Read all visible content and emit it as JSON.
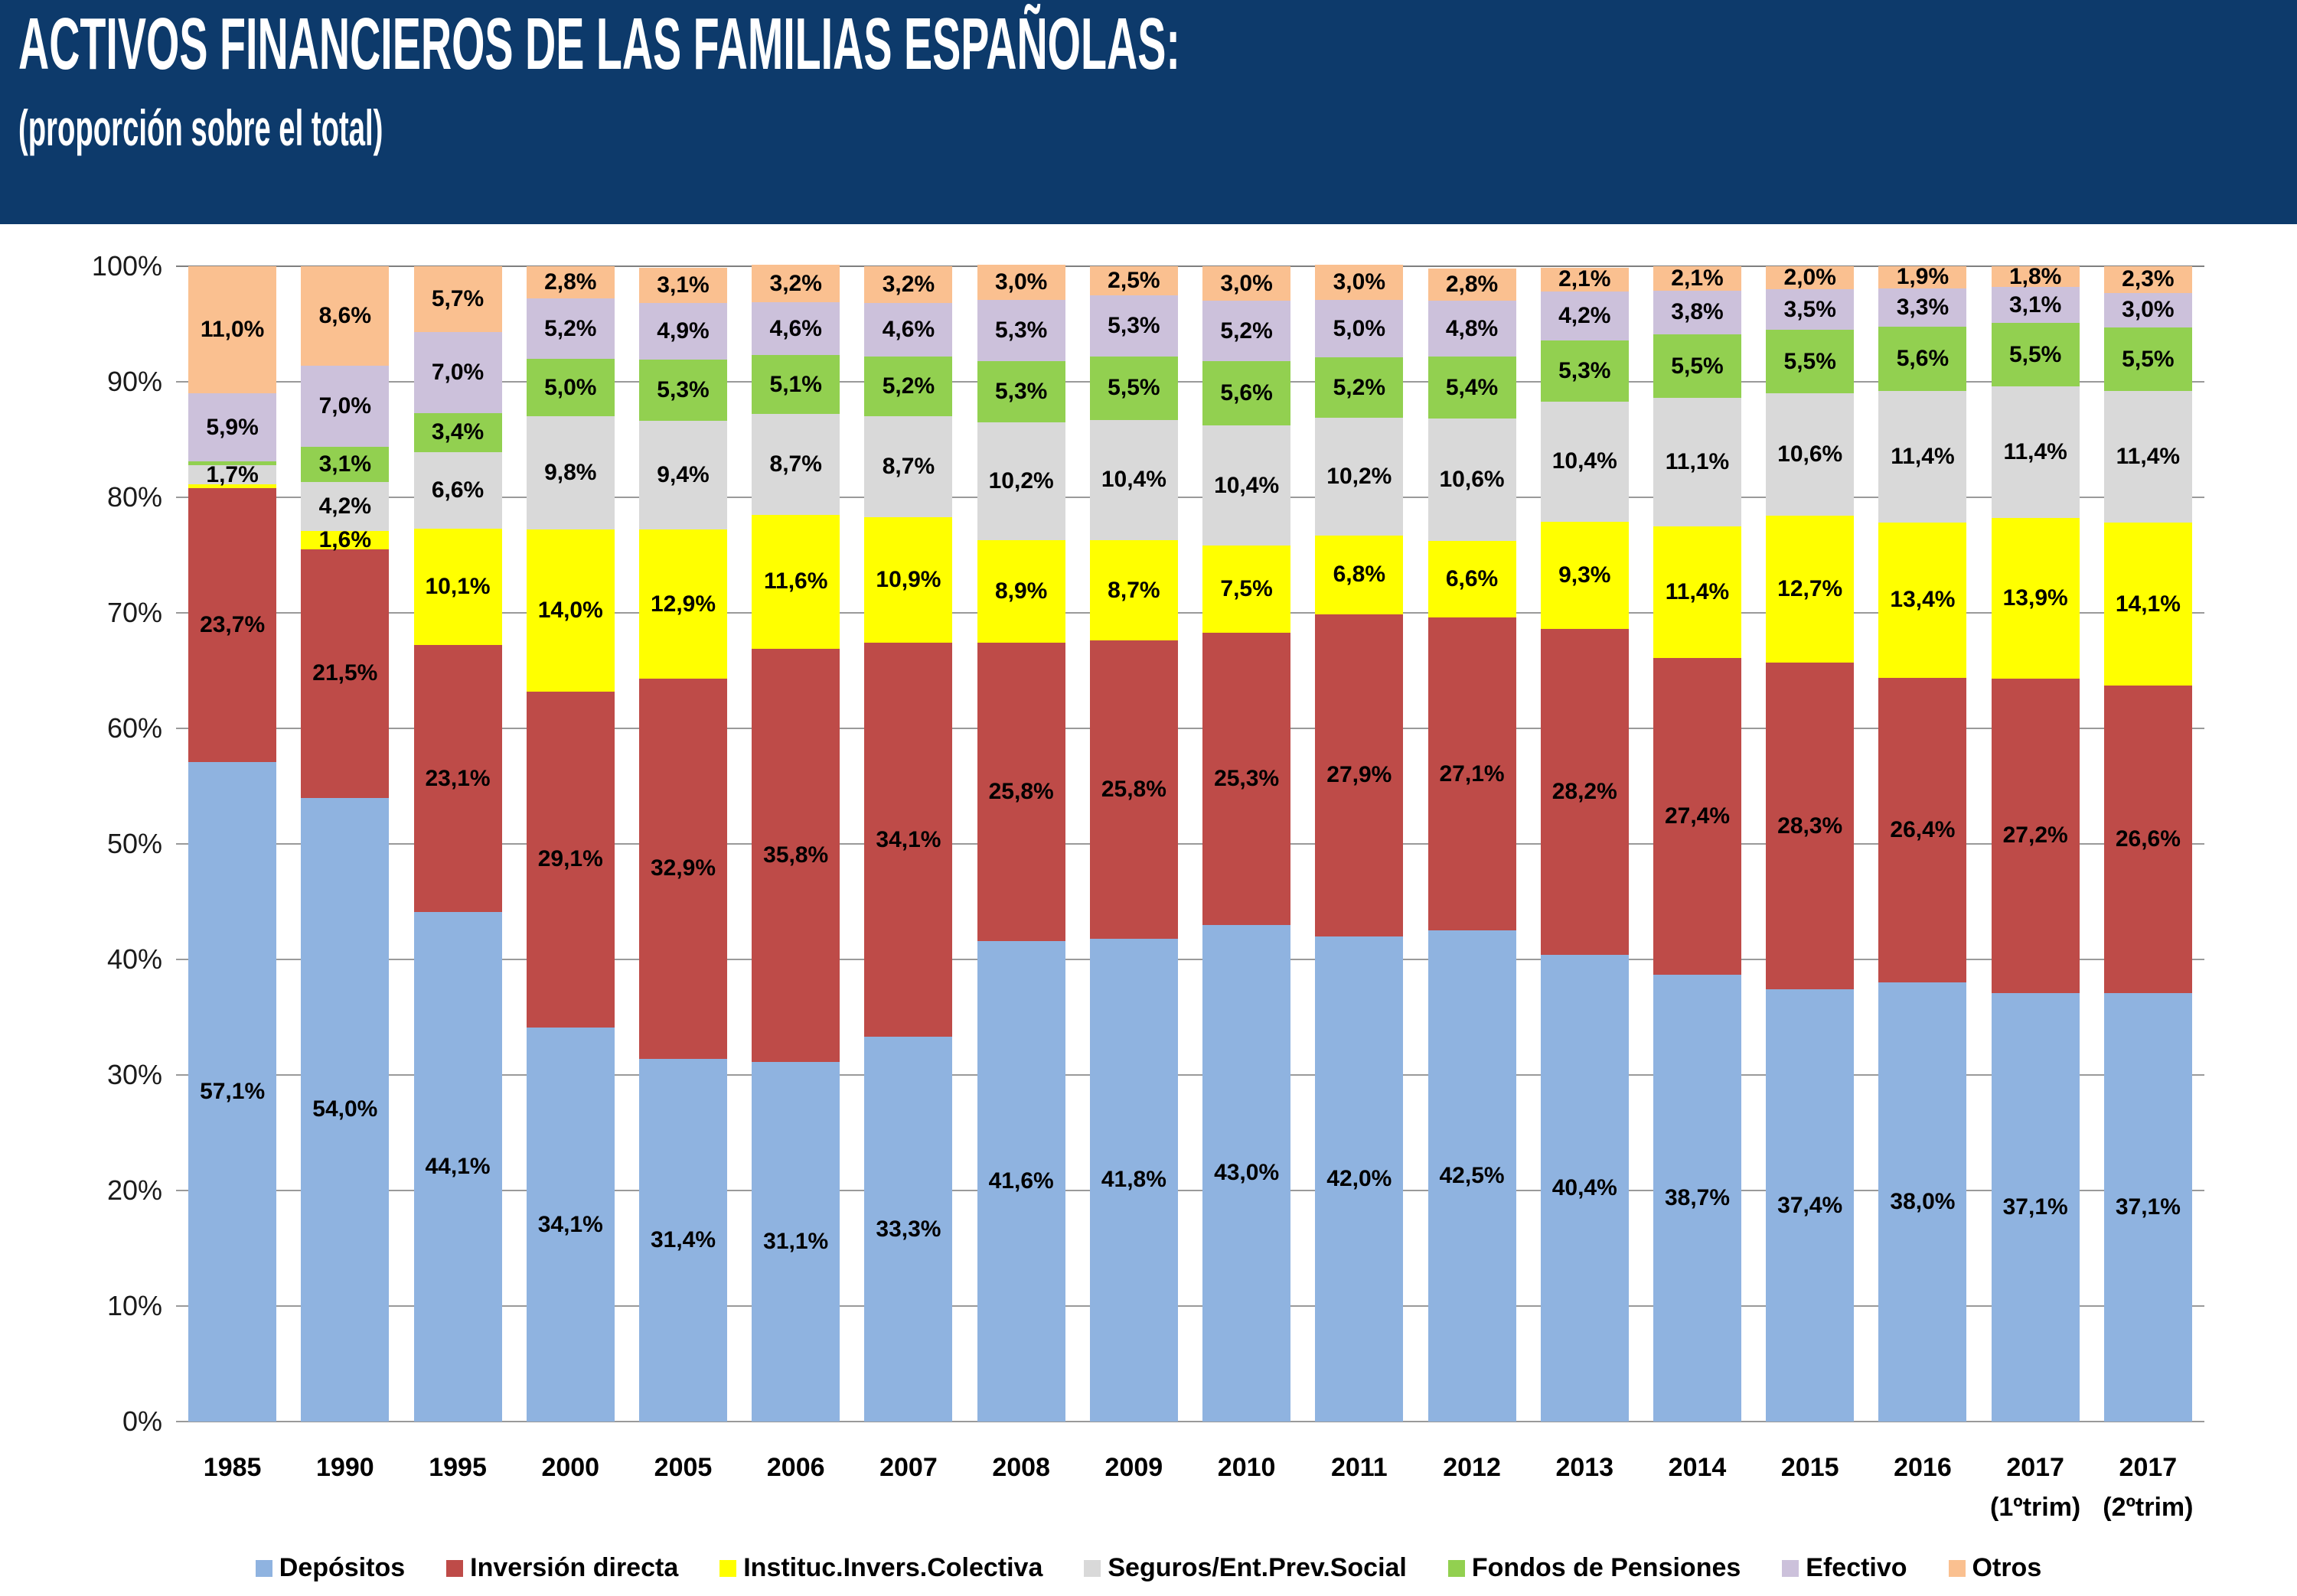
{
  "header": {
    "title": "ACTIVOS FINANCIEROS DE LAS FAMILIAS ESPAÑOLAS:",
    "subtitle": "(proporción sobre el total)"
  },
  "colors": {
    "header_bg": "#0d3a6b",
    "gridline": "#9a9a9a",
    "gridline_top": "#7f7f7f",
    "axis_label": "#1a1a1a",
    "data_label": "#000000"
  },
  "chart_data": {
    "type": "bar",
    "variant": "stacked-100-percent",
    "title": "ACTIVOS FINANCIEROS DE LAS FAMILIAS ESPAÑOLAS:",
    "subtitle": "(proporción sobre el total)",
    "xlabel": "",
    "ylabel": "",
    "ylim": [
      0,
      100
    ],
    "y_tick_labels": [
      "0%",
      "10%",
      "20%",
      "30%",
      "40%",
      "50%",
      "60%",
      "70%",
      "80%",
      "90%",
      "100%"
    ],
    "grid": true,
    "legend_position": "bottom",
    "categories": [
      "1985",
      "1990",
      "1995",
      "2000",
      "2005",
      "2006",
      "2007",
      "2008",
      "2009",
      "2010",
      "2011",
      "2012",
      "2013",
      "2014",
      "2015",
      "2016",
      "2017",
      "2017"
    ],
    "category_sublabels": {
      "16": "(1ºtrim)",
      "17": "(2ºtrim)"
    },
    "series": [
      {
        "name": "Depósitos",
        "color": "#8fb3e0",
        "values": [
          57.1,
          54.0,
          44.1,
          34.1,
          31.4,
          31.1,
          33.3,
          41.6,
          41.8,
          43.0,
          42.0,
          42.5,
          40.4,
          38.7,
          37.4,
          38.0,
          37.1,
          37.1
        ]
      },
      {
        "name": "Inversión directa",
        "color": "#be4b48",
        "values": [
          23.7,
          21.5,
          23.1,
          29.1,
          32.9,
          35.8,
          34.1,
          25.8,
          25.8,
          25.3,
          27.9,
          27.1,
          28.2,
          27.4,
          28.3,
          26.4,
          27.2,
          26.6
        ]
      },
      {
        "name": "Instituc.Invers.Colectiva",
        "color": "#ffff00",
        "values": [
          0.3,
          1.6,
          10.1,
          14.0,
          12.9,
          11.6,
          10.9,
          8.9,
          8.7,
          7.5,
          6.8,
          6.6,
          9.3,
          11.4,
          12.7,
          13.4,
          13.9,
          14.1
        ],
        "note": "1985 value unlabeled in chart (thin sliver, ~0.3%)"
      },
      {
        "name": "Seguros/Ent.Prev.Social",
        "color": "#d9d9d9",
        "values": [
          1.7,
          4.2,
          6.6,
          9.8,
          9.4,
          8.7,
          8.7,
          10.2,
          10.4,
          10.4,
          10.2,
          10.6,
          10.4,
          11.1,
          10.6,
          11.4,
          11.4,
          11.4
        ]
      },
      {
        "name": "Fondos de Pensiones",
        "color": "#92d050",
        "values": [
          0.3,
          3.1,
          3.4,
          5.0,
          5.3,
          5.1,
          5.2,
          5.3,
          5.5,
          5.6,
          5.2,
          5.4,
          5.3,
          5.5,
          5.5,
          5.6,
          5.5,
          5.5
        ],
        "note": "1985 value unlabeled in chart (thin sliver, ~0.3%)"
      },
      {
        "name": "Efectivo",
        "color": "#ccc1db",
        "values": [
          5.9,
          7.0,
          7.0,
          5.2,
          4.9,
          4.6,
          4.6,
          5.3,
          5.3,
          5.2,
          5.0,
          4.8,
          4.2,
          3.8,
          3.5,
          3.3,
          3.1,
          3.0
        ]
      },
      {
        "name": "Otros",
        "color": "#fac090",
        "values": [
          11.0,
          8.6,
          5.7,
          2.8,
          3.1,
          3.2,
          3.2,
          3.0,
          2.5,
          3.0,
          3.0,
          2.8,
          2.1,
          2.1,
          2.0,
          1.9,
          1.8,
          2.3
        ]
      }
    ],
    "data_label_format": "spanish decimal comma, one decimal, percent suffix",
    "data_label_min_value_shown": 1.0
  }
}
